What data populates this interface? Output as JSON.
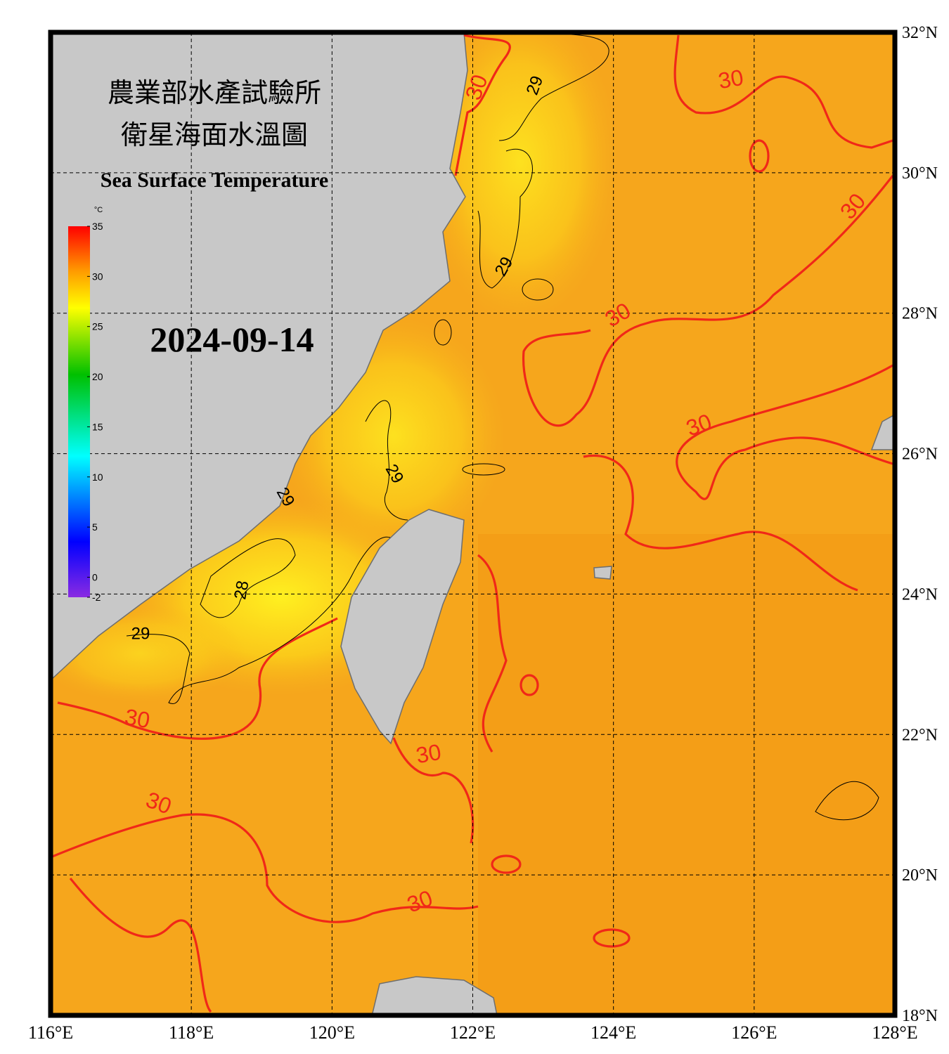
{
  "title": {
    "line1": "農業部水產試驗所",
    "line2": "衛星海面水溫圖",
    "english": "Sea Surface Temperature"
  },
  "date": "2024-09-14",
  "colorbar": {
    "unit": "°C",
    "ticks": [
      35,
      30,
      25,
      20,
      15,
      10,
      5,
      0,
      -2
    ]
  },
  "map": {
    "lon_labels": [
      "116°E",
      "118°E",
      "120°E",
      "122°E",
      "124°E",
      "126°E",
      "128°E"
    ],
    "lat_labels": [
      "32°N",
      "30°N",
      "28°N",
      "26°N",
      "24°N",
      "22°N",
      "20°N",
      "18°N"
    ],
    "contour_labels": [
      "30",
      "30",
      "30",
      "30",
      "30",
      "30",
      "30",
      "30",
      "30",
      "29",
      "29",
      "29",
      "29",
      "28",
      "29"
    ]
  }
}
